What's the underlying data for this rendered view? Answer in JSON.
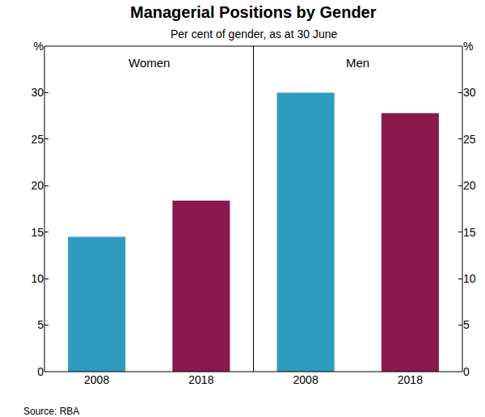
{
  "title": "Managerial Positions by Gender",
  "subtitle": "Per cent of gender, as at 30 June",
  "source": "Source: RBA",
  "chart_data": [
    {
      "type": "bar",
      "title": "Women",
      "categories": [
        "2008",
        "2018"
      ],
      "values": [
        14.5,
        18.4
      ],
      "colors": [
        "#2e9cbf",
        "#8a1a4d"
      ],
      "ylim": [
        0,
        35
      ],
      "yticks": [
        0,
        5,
        10,
        15,
        20,
        25,
        30,
        {
          "value": 35,
          "label": "%"
        }
      ],
      "grid": false
    },
    {
      "type": "bar",
      "title": "Men",
      "categories": [
        "2008",
        "2018"
      ],
      "values": [
        30,
        27.8
      ],
      "colors": [
        "#2e9cbf",
        "#8a1a4d"
      ],
      "ylim": [
        0,
        35
      ],
      "yticks": [
        0,
        5,
        10,
        15,
        20,
        25,
        30,
        {
          "value": 35,
          "label": "%"
        }
      ],
      "grid": false
    }
  ]
}
